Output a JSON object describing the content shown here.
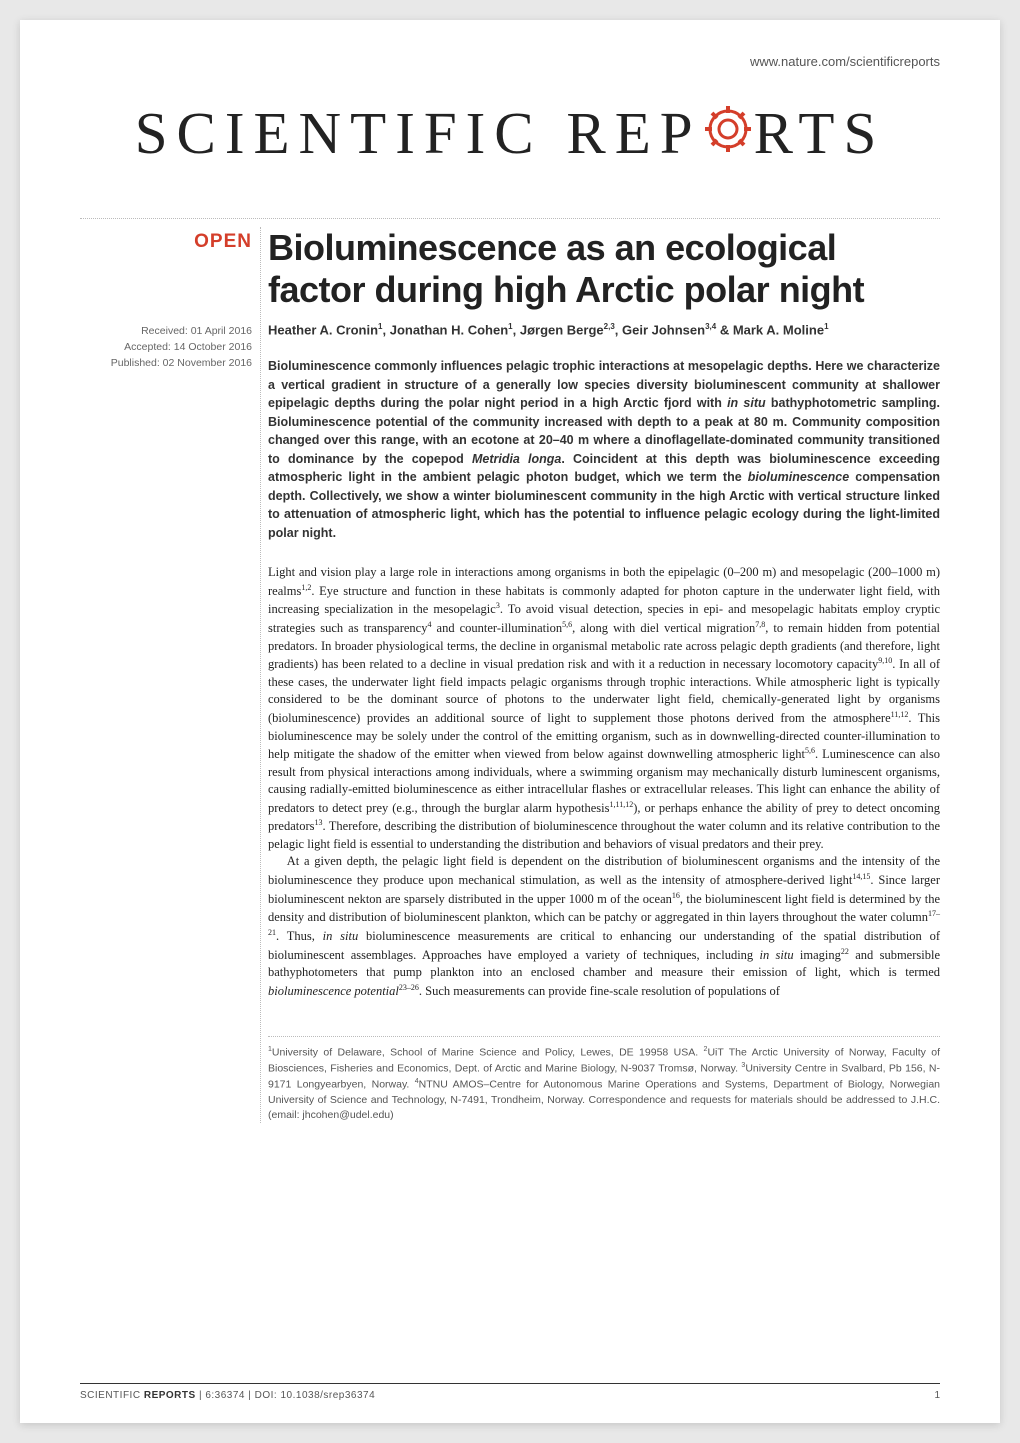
{
  "header": {
    "url": "www.nature.com/scientificreports"
  },
  "journal": {
    "name_part1": "SCIENTIFIC ",
    "name_part2": "REP",
    "name_part3": "RTS",
    "gear_color": "#d43e2a"
  },
  "badge": {
    "open": "OPEN"
  },
  "dates": {
    "received": "Received: 01 April 2016",
    "accepted": "Accepted: 14 October 2016",
    "published": "Published: 02 November 2016"
  },
  "article": {
    "title": "Bioluminescence as an ecological factor during high Arctic polar night",
    "authors_html": "Heather A. Cronin<sup>1</sup>, Jonathan H. Cohen<sup>1</sup>, Jørgen Berge<sup>2,3</sup>, Geir Johnsen<sup>3,4</sup> & Mark A. Moline<sup>1</sup>",
    "abstract_html": "Bioluminescence commonly influences pelagic trophic interactions at mesopelagic depths. Here we characterize a vertical gradient in structure of a generally low species diversity bioluminescent community at shallower epipelagic depths during the polar night period in a high Arctic fjord with <em>in situ</em> bathyphotometric sampling. Bioluminescence potential of the community increased with depth to a peak at 80 m. Community composition changed over this range, with an ecotone at 20–40 m where a dinoflagellate-dominated community transitioned to dominance by the copepod <em>Metridia longa</em>. Coincident at this depth was bioluminescence exceeding atmospheric light in the ambient pelagic photon budget, which we term the <em>bioluminescence</em> compensation depth. Collectively, we show a winter bioluminescent community in the high Arctic with vertical structure linked to attenuation of atmospheric light, which has the potential to influence pelagic ecology during the light-limited polar night.",
    "para1_html": "Light and vision play a large role in interactions among organisms in both the epipelagic (0–200 m) and mesopelagic (200–1000 m) realms<sup>1,2</sup>. Eye structure and function in these habitats is commonly adapted for photon capture in the underwater light field, with increasing specialization in the mesopelagic<sup>3</sup>. To avoid visual detection, species in epi- and mesopelagic habitats employ cryptic strategies such as transparency<sup>4</sup> and counter-illumination<sup>5,6</sup>, along with diel vertical migration<sup>7,8</sup>, to remain hidden from potential predators. In broader physiological terms, the decline in organismal metabolic rate across pelagic depth gradients (and therefore, light gradients) has been related to a decline in visual predation risk and with it a reduction in necessary locomotory capacity<sup>9,10</sup>. In all of these cases, the underwater light field impacts pelagic organisms through trophic interactions. While atmospheric light is typically considered to be the dominant source of photons to the underwater light field, chemically-generated light by organisms (bioluminescence) provides an additional source of light to supplement those photons derived from the atmosphere<sup>11,12</sup>. This bioluminescence may be solely under the control of the emitting organism, such as in downwelling-directed counter-illumination to help mitigate the shadow of the emitter when viewed from below against downwelling atmospheric light<sup>5,6</sup>. Luminescence can also result from physical interactions among individuals, where a swimming organism may mechanically disturb luminescent organisms, causing radially-emitted bioluminescence as either intracellular flashes or extracellular releases. This light can enhance the ability of predators to detect prey (e.g., through the burglar alarm hypothesis<sup>1,11,12</sup>), or perhaps enhance the ability of prey to detect oncoming predators<sup>13</sup>. Therefore, describing the distribution of bioluminescence throughout the water column and its relative contribution to the pelagic light field is essential to understanding the distribution and behaviors of visual predators and their prey.",
    "para2_html": "At a given depth, the pelagic light field is dependent on the distribution of bioluminescent organisms and the intensity of the bioluminescence they produce upon mechanical stimulation, as well as the intensity of atmosphere-derived light<sup>14,15</sup>. Since larger bioluminescent nekton are sparsely distributed in the upper 1000 m of the ocean<sup>16</sup>, the bioluminescent light field is determined by the density and distribution of bioluminescent plankton, which can be patchy or aggregated in thin layers throughout the water column<sup>17–21</sup>. Thus, <em>in situ</em> bioluminescence measurements are critical to enhancing our understanding of the spatial distribution of bioluminescent assemblages. Approaches have employed a variety of techniques, including <em>in situ</em> imaging<sup>22</sup> and submersible bathyphotometers that pump plankton into an enclosed chamber and measure their emission of light, which is termed <em>bioluminescence potential</em><sup>23–26</sup>. Such measurements can provide fine-scale resolution of populations of",
    "affiliations_html": "<sup>1</sup>University of Delaware, School of Marine Science and Policy, Lewes, DE 19958 USA. <sup>2</sup>UiT The Arctic University of Norway, Faculty of Biosciences, Fisheries and Economics, Dept. of Arctic and Marine Biology, N-9037 Tromsø, Norway. <sup>3</sup>University Centre in Svalbard, Pb 156, N-9171 Longyearbyen, Norway. <sup>4</sup>NTNU AMOS–Centre for Autonomous Marine Operations and Systems, Department of Biology, Norwegian University of Science and Technology, N-7491, Trondheim, Norway. Correspondence and requests for materials should be addressed to J.H.C. (email: jhcohen@udel.edu)"
  },
  "footer": {
    "citation_html": "SCIENTIFIC <strong>REPORTS</strong> | 6:36374 | DOI: 10.1038/srep36374",
    "page": "1"
  },
  "style": {
    "page_bg": "#ffffff",
    "body_bg": "#e8e8e8",
    "accent": "#d43e2a",
    "text_primary": "#222",
    "text_secondary": "#666"
  }
}
